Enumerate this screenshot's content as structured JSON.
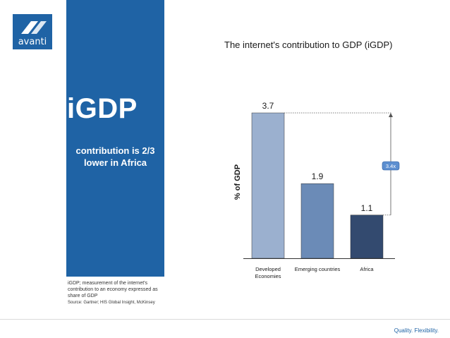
{
  "logo": {
    "text": "avanti"
  },
  "panel": {
    "title": "iGDP",
    "subtitle": "contribution is 2/3\nlower in Africa"
  },
  "footnote": {
    "definition": "iGDP; measurement of the internet's contribution to an economy expressed as share of GDP",
    "source": "Source: Gartner; HIS Global Insight, McKinsey"
  },
  "footer": {
    "tagline": "Quality. Flexibility."
  },
  "colors": {
    "brand": "#1f63a5",
    "bar_developed": "#9bb0cf",
    "bar_emerging": "#6b8bb7",
    "bar_africa": "#334a6f",
    "multiplier_badge": "#5d8fd0"
  },
  "chart_data": {
    "type": "bar",
    "title": "The internet's contribution to GDP (iGDP)",
    "ylabel": "% of GDP",
    "xlabel": "",
    "categories": [
      "Developed\nEconomies",
      "Emerging countries",
      "Africa"
    ],
    "values": [
      3.7,
      1.9,
      1.1
    ],
    "value_labels": [
      "3.7",
      "1.9",
      "1.1"
    ],
    "ylim": [
      0,
      3.7
    ],
    "grid": false,
    "annotation": {
      "text": "3.4x",
      "from_value": 3.7,
      "to_value": 1.1
    }
  }
}
